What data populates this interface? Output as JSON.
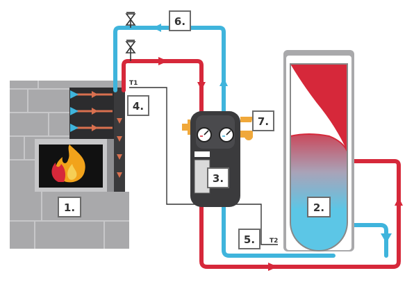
{
  "labels": {
    "fireplace": "1.",
    "tank": "2.",
    "pump_unit": "3.",
    "heat_exchanger": "4.",
    "sensor_return": "5.",
    "expansion": "6.",
    "valve": "7."
  },
  "sensors": {
    "t1": "T1",
    "t2": "T2"
  },
  "colors": {
    "hot_pipe": "#d6283a",
    "cold_pipe": "#3fb4dc",
    "stone": "#a9a9ab",
    "stone_dark": "#8e8e91",
    "unit_body": "#3b3b3d",
    "brass": "#f0a83a",
    "label_border": "#6b6b6b"
  },
  "icons": {
    "flame": "flame-icon",
    "valve": "gate-valve-icon",
    "gauge": "gauge-icon",
    "flow_arrow": "arrow-icon"
  }
}
